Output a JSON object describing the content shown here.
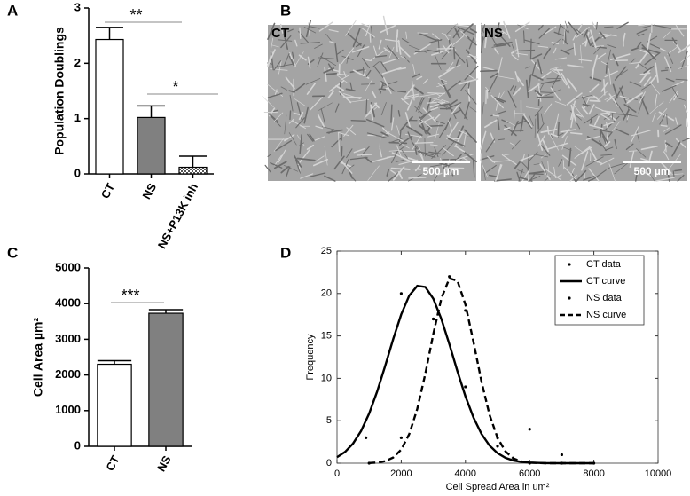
{
  "chart_data": [
    {
      "type": "bar",
      "panel_label": "A",
      "ylabel": "Population Doublings",
      "categories": [
        "CT",
        "NS",
        "NS+P13K inh"
      ],
      "values": [
        2.43,
        1.02,
        0.12
      ],
      "errors": [
        0.22,
        0.21,
        0.2
      ],
      "colors": [
        "#ffffff",
        "#808080",
        "#c8c8c8"
      ],
      "ylim": [
        0,
        3
      ],
      "yticks": [
        0,
        1,
        2,
        3
      ],
      "annotations": [
        "**",
        "*"
      ]
    },
    {
      "type": "bar",
      "panel_label": "C",
      "ylabel": "Cell Area µm²",
      "categories": [
        "CT",
        "NS"
      ],
      "values": [
        2300,
        3730
      ],
      "errors": [
        100,
        100
      ],
      "colors": [
        "#ffffff",
        "#808080"
      ],
      "ylim": [
        0,
        5000
      ],
      "yticks": [
        0,
        1000,
        2000,
        3000,
        4000,
        5000
      ],
      "annotations": [
        "***"
      ]
    },
    {
      "type": "line",
      "panel_label": "D",
      "xlabel": "Cell Spread  Area in um²",
      "ylabel": "Frequency",
      "xlim": [
        0,
        10000
      ],
      "xticks": [
        0,
        2000,
        4000,
        6000,
        8000,
        10000
      ],
      "ylim": [
        0,
        25
      ],
      "yticks": [
        0,
        5,
        10,
        15,
        20,
        25
      ],
      "legend": "upper right",
      "series": [
        {
          "name": "CT data",
          "color": "#000000",
          "style": "markers",
          "x": [
            900,
            2000,
            3000,
            4000,
            5000,
            6000,
            7000,
            8000
          ],
          "values": [
            3,
            20,
            17,
            9,
            2,
            4,
            1,
            0
          ]
        },
        {
          "name": "CT curve",
          "color": "#000000",
          "style": "solid",
          "x": [
            0,
            250,
            500,
            750,
            1000,
            1250,
            1500,
            1750,
            2000,
            2250,
            2500,
            2750,
            3000,
            3250,
            3500,
            3750,
            4000,
            4250,
            4500,
            4750,
            5000,
            5250,
            5500,
            5750,
            6000,
            6500,
            7000,
            7500,
            8000
          ],
          "values": [
            0.71,
            1.33,
            2.32,
            3.8,
            5.84,
            8.45,
            11.47,
            14.63,
            17.54,
            19.76,
            20.9,
            20.77,
            19.38,
            17.0,
            14.01,
            10.84,
            7.88,
            5.38,
            3.45,
            2.08,
            1.18,
            0.63,
            0.31,
            0.15,
            0.07,
            0.01,
            0,
            0,
            0
          ]
        },
        {
          "name": "NS data",
          "color": "#000000",
          "style": "markers",
          "x": [
            1000,
            2000,
            3000,
            3500,
            4000,
            5000,
            6000,
            7000
          ],
          "values": [
            0,
            3,
            17,
            22,
            18,
            3,
            0,
            0
          ]
        },
        {
          "name": "NS curve",
          "color": "#000000",
          "style": "dashed",
          "x": [
            1000,
            1250,
            1500,
            1750,
            2000,
            2250,
            2500,
            2750,
            3000,
            3250,
            3500,
            3750,
            4000,
            4250,
            4500,
            4750,
            5000,
            5250,
            5500,
            5750,
            6000,
            6500,
            7000,
            7500,
            8000
          ],
          "values": [
            0.02,
            0.08,
            0.24,
            0.67,
            1.6,
            3.43,
            6.4,
            10.53,
            15.24,
            19.42,
            21.78,
            21.5,
            18.69,
            14.3,
            9.63,
            5.71,
            2.98,
            1.37,
            0.55,
            0.2,
            0.06,
            0,
            0,
            0,
            0
          ]
        }
      ]
    }
  ],
  "images": {
    "panel_label": "B",
    "items": [
      {
        "label": "CT",
        "scale_bar": "500 µm"
      },
      {
        "label": "NS",
        "scale_bar": "500 µm"
      }
    ]
  }
}
